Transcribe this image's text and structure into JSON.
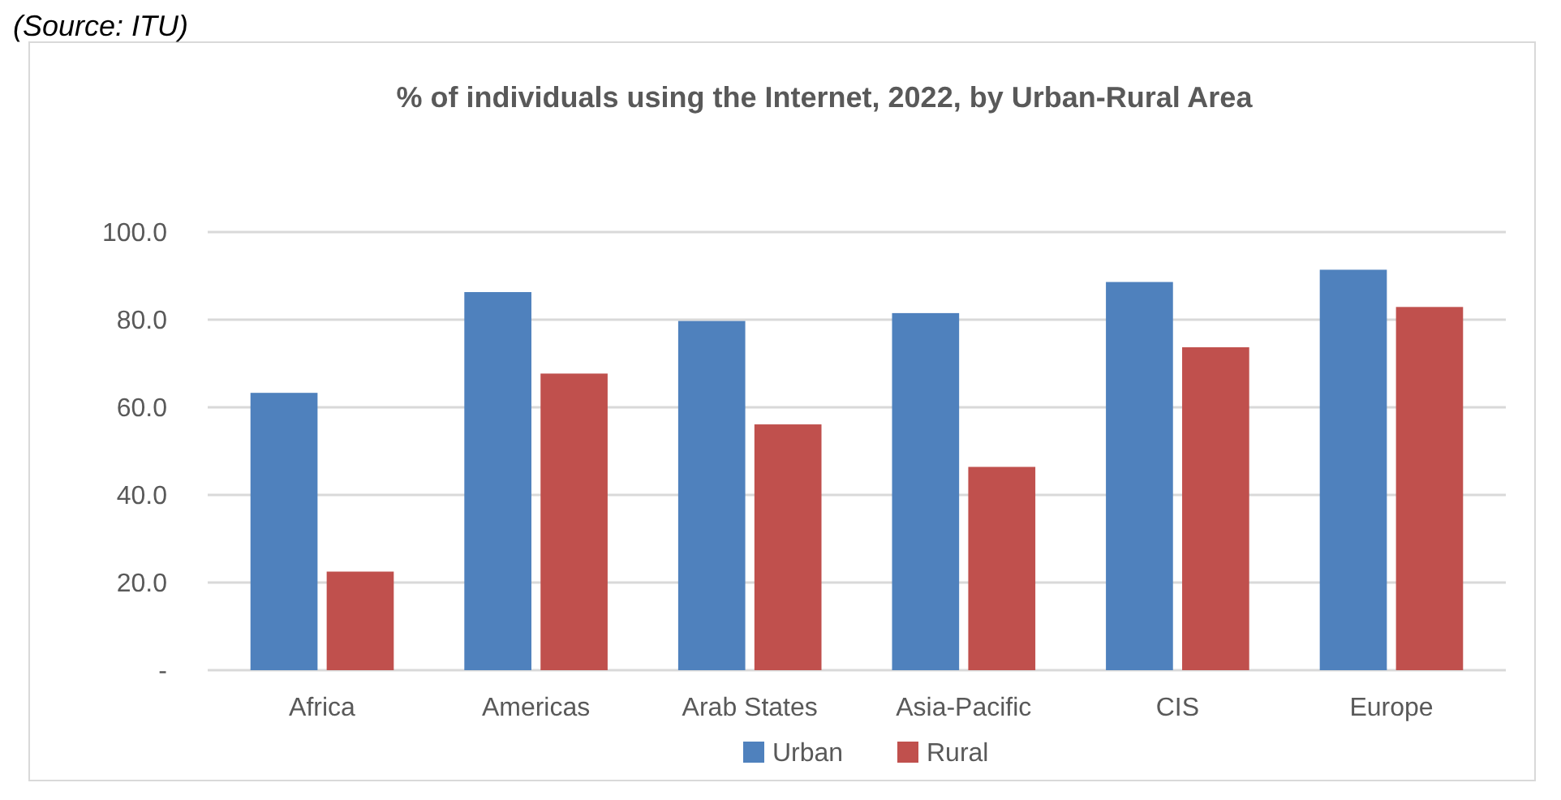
{
  "chart_data": {
    "type": "bar",
    "title": "% of individuals using the Internet, 2022, by Urban-Rural Area",
    "annotations": [
      "(Source: ITU)"
    ],
    "categories": [
      "Africa",
      "Americas",
      "Arab States",
      "Asia-Pacific",
      "CIS",
      "Europe"
    ],
    "series": [
      {
        "name": "Urban",
        "color": "#4f81bd",
        "values": [
          63.3,
          86.3,
          79.7,
          81.5,
          88.6,
          91.4
        ]
      },
      {
        "name": "Rural",
        "color": "#c0504d",
        "values": [
          22.5,
          67.7,
          56.1,
          46.4,
          73.7,
          82.9
        ]
      }
    ],
    "ylim": [
      0,
      100
    ],
    "yticks": [
      {
        "value": 0,
        "label": "-"
      },
      {
        "value": 20,
        "label": "20.0"
      },
      {
        "value": 40,
        "label": "40.0"
      },
      {
        "value": 60,
        "label": "60.0"
      },
      {
        "value": 80,
        "label": "80.0"
      },
      {
        "value": 100,
        "label": "100.0"
      }
    ],
    "grid": "y",
    "legend": "bottom"
  }
}
